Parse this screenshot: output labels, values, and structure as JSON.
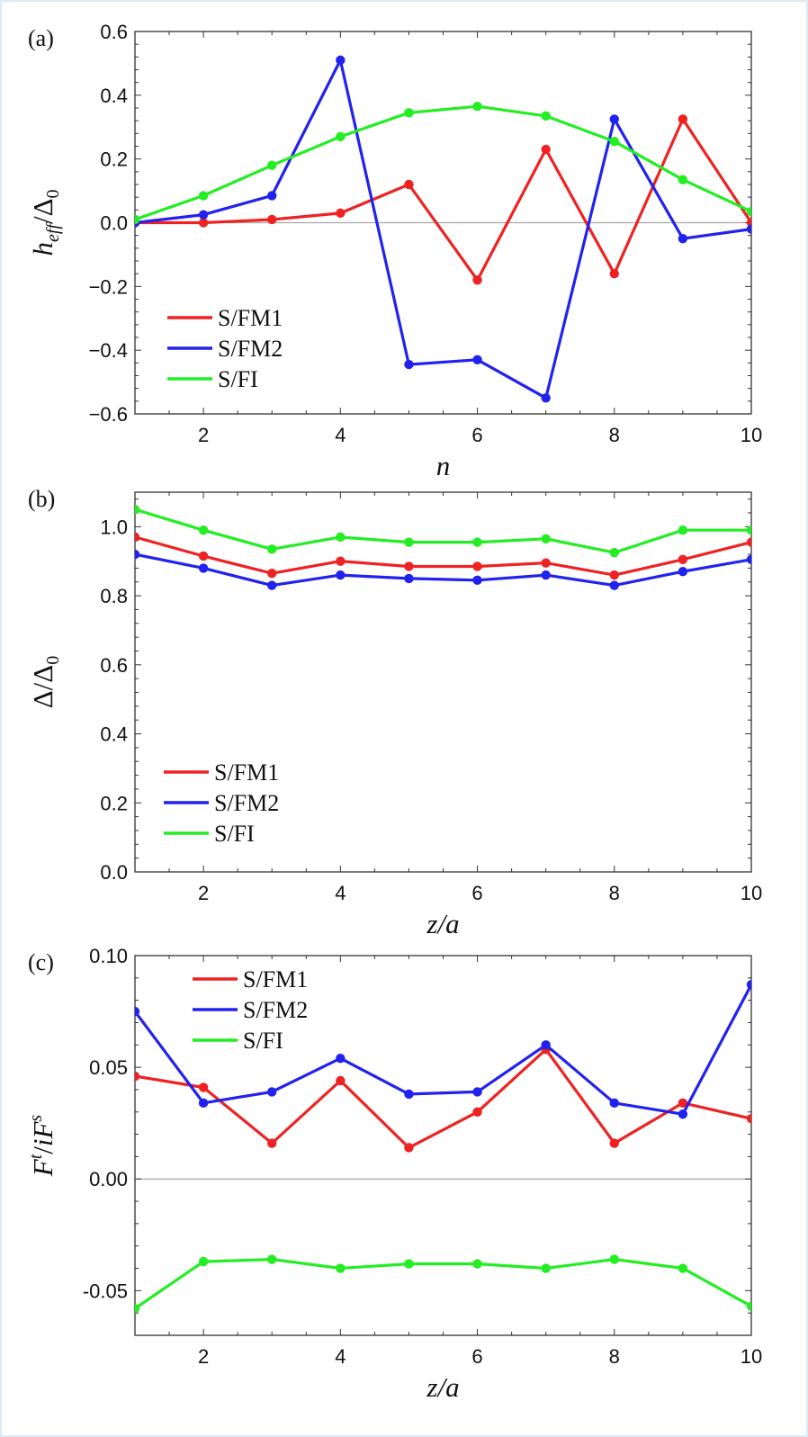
{
  "chart_data": [
    {
      "type": "line",
      "panel_label": "(a)",
      "ylabel": "h_eff/Δ_0",
      "ylabel_parts": {
        "main": "h",
        "sub": "eff",
        "sep": "/",
        "main2": "Δ",
        "sub2": "0"
      },
      "xlabel": "n",
      "xlim": [
        1,
        10
      ],
      "ylim": [
        -0.6,
        0.6
      ],
      "xticks": [
        2,
        4,
        6,
        8,
        10
      ],
      "xtick_labels": [
        "2",
        "4",
        "6",
        "8",
        "10"
      ],
      "yticks": [
        -0.6,
        -0.4,
        -0.2,
        0.0,
        0.2,
        0.4,
        0.6
      ],
      "ytick_labels": [
        "−0.6",
        "−0.4",
        "−0.2",
        "0.0",
        "0.2",
        "0.4",
        "0.6"
      ],
      "zero_line": true,
      "legend_position": "lower-left",
      "x": [
        1,
        2,
        3,
        4,
        5,
        6,
        7,
        8,
        9,
        10
      ],
      "series": [
        {
          "name": "S/FM1",
          "color": "#ee2222",
          "values": [
            0.0,
            0.0,
            0.01,
            0.03,
            0.12,
            -0.18,
            0.23,
            -0.16,
            0.325,
            0.0
          ]
        },
        {
          "name": "S/FM2",
          "color": "#2222ee",
          "values": [
            0.0,
            0.025,
            0.085,
            0.51,
            -0.445,
            -0.43,
            -0.55,
            0.325,
            -0.05,
            -0.02
          ]
        },
        {
          "name": "S/FI",
          "color": "#22ee22",
          "values": [
            0.01,
            0.085,
            0.18,
            0.27,
            0.345,
            0.365,
            0.335,
            0.255,
            0.135,
            0.035
          ]
        }
      ]
    },
    {
      "type": "line",
      "panel_label": "(b)",
      "ylabel": "Δ/Δ_0",
      "ylabel_parts": {
        "main": "Δ",
        "sub": "",
        "sep": "/",
        "main2": "Δ",
        "sub2": "0"
      },
      "xlabel": "z/a",
      "xlim": [
        1,
        10
      ],
      "ylim": [
        0.0,
        1.1
      ],
      "xticks": [
        2,
        4,
        6,
        8,
        10
      ],
      "xtick_labels": [
        "2",
        "4",
        "6",
        "8",
        "10"
      ],
      "yticks": [
        0.0,
        0.2,
        0.4,
        0.6,
        0.8,
        1.0
      ],
      "ytick_labels": [
        "0.0",
        "0.2",
        "0.4",
        "0.6",
        "0.8",
        "1.0"
      ],
      "zero_line": false,
      "legend_position": "lower-left",
      "x": [
        1,
        2,
        3,
        4,
        5,
        6,
        7,
        8,
        9,
        10
      ],
      "series": [
        {
          "name": "S/FM1",
          "color": "#ee2222",
          "values": [
            0.97,
            0.915,
            0.865,
            0.9,
            0.885,
            0.885,
            0.895,
            0.86,
            0.905,
            0.955
          ]
        },
        {
          "name": "S/FM2",
          "color": "#2222ee",
          "values": [
            0.92,
            0.88,
            0.83,
            0.86,
            0.85,
            0.845,
            0.86,
            0.83,
            0.87,
            0.905
          ]
        },
        {
          "name": "S/FI",
          "color": "#22ee22",
          "values": [
            1.05,
            0.99,
            0.935,
            0.97,
            0.955,
            0.955,
            0.965,
            0.925,
            0.99,
            0.99
          ]
        }
      ]
    },
    {
      "type": "line",
      "panel_label": "(c)",
      "ylabel": "F^t/iF^s",
      "ylabel_parts": {
        "main": "F",
        "sup": "t",
        "sep": "/",
        "main2": "iF",
        "sup2": "s"
      },
      "xlabel": "z/a",
      "xlim": [
        1,
        10
      ],
      "ylim": [
        -0.07,
        0.1
      ],
      "xticks": [
        2,
        4,
        6,
        8,
        10
      ],
      "xtick_labels": [
        "2",
        "4",
        "6",
        "8",
        "10"
      ],
      "yticks": [
        -0.05,
        0.0,
        0.05,
        0.1
      ],
      "ytick_labels": [
        "-0.05",
        "0.00",
        "0.05",
        "0.10"
      ],
      "zero_line": true,
      "legend_position": "top-left",
      "x": [
        1,
        2,
        3,
        4,
        5,
        6,
        7,
        8,
        9,
        10
      ],
      "series": [
        {
          "name": "S/FM1",
          "color": "#ee2222",
          "values": [
            0.046,
            0.041,
            0.016,
            0.044,
            0.014,
            0.03,
            0.058,
            0.016,
            0.034,
            0.027
          ]
        },
        {
          "name": "S/FM2",
          "color": "#2222ee",
          "values": [
            0.075,
            0.034,
            0.039,
            0.054,
            0.038,
            0.039,
            0.06,
            0.034,
            0.029,
            0.087
          ]
        },
        {
          "name": "S/FI",
          "color": "#22ee22",
          "values": [
            -0.058,
            -0.037,
            -0.036,
            -0.04,
            -0.038,
            -0.038,
            -0.04,
            -0.036,
            -0.04,
            -0.057
          ]
        }
      ]
    }
  ]
}
